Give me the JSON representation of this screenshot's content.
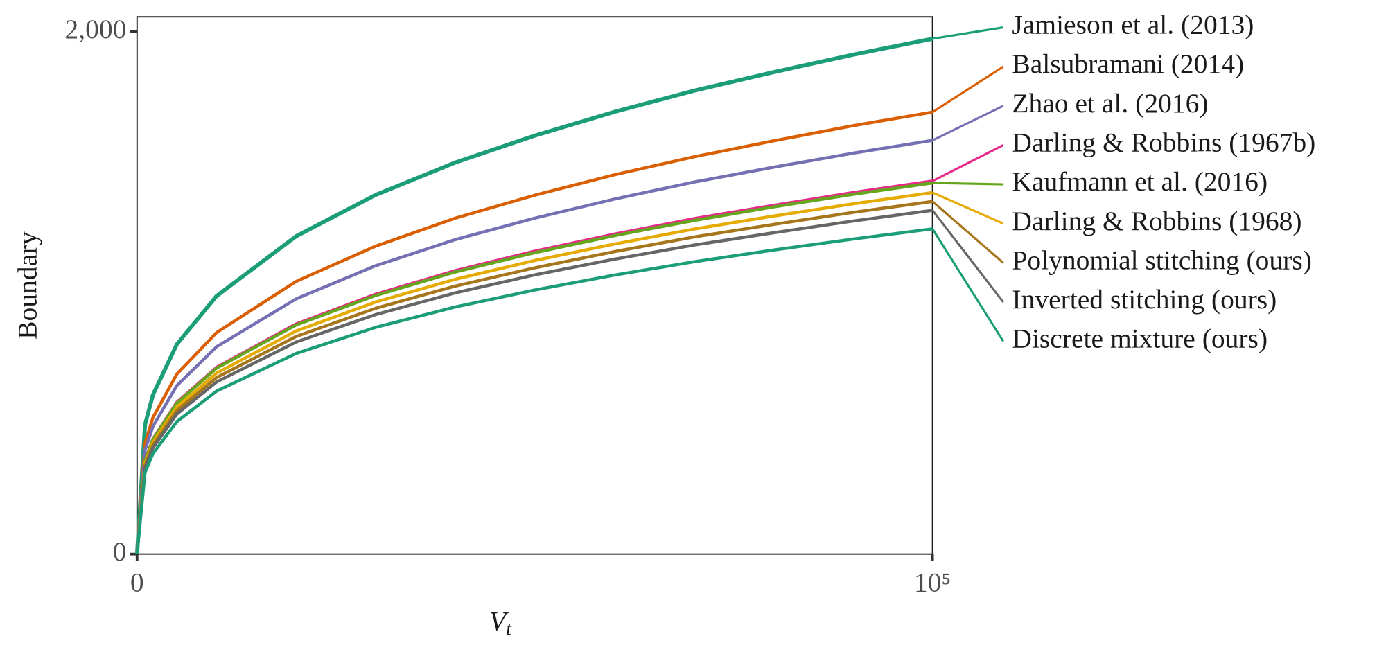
{
  "chart_data": {
    "type": "line",
    "xlabel": [
      "V",
      "t"
    ],
    "ylabel": "Boundary",
    "x": [
      0,
      1000,
      2000,
      5000,
      10000,
      20000,
      30000,
      40000,
      50000,
      60000,
      70000,
      80000,
      90000,
      100000
    ],
    "xlim": [
      0,
      100000
    ],
    "ylim": [
      0,
      2057
    ],
    "xticks": [
      0,
      {
        "value": 100000,
        "label": "10⁵"
      }
    ],
    "yticks": [
      0,
      {
        "value": 2000,
        "label": "2,000"
      }
    ],
    "series": [
      {
        "name": "Jamieson et al. (2013)",
        "color": "#1b9e77",
        "values": [
          0,
          495,
          610,
          803,
          988,
          1217,
          1375,
          1499,
          1602,
          1693,
          1774,
          1845,
          1912,
          1973
        ]
      },
      {
        "name": "Balsubramani (2014)",
        "color": "#d95f02",
        "values": [
          0,
          425,
          523,
          689,
          848,
          1044,
          1179,
          1286,
          1374,
          1452,
          1521,
          1582,
          1640,
          1692
        ]
      },
      {
        "name": "Zhao et al. (2016)",
        "color": "#7570b3",
        "values": [
          0,
          398,
          489,
          645,
          794,
          977,
          1104,
          1204,
          1286,
          1359,
          1424,
          1481,
          1535,
          1584
        ]
      },
      {
        "name": "Darling & Robbins (1967b)",
        "color": "#e7298a",
        "values": [
          0,
          358,
          441,
          581,
          715,
          881,
          995,
          1085,
          1160,
          1225,
          1284,
          1335,
          1384,
          1428
        ]
      },
      {
        "name": "Kaufmann et al. (2016)",
        "color": "#66a61e",
        "values": [
          0,
          357,
          439,
          578,
          712,
          877,
          990,
          1080,
          1154,
          1219,
          1277,
          1329,
          1377,
          1421
        ]
      },
      {
        "name": "Darling & Robbins (1968)",
        "color": "#e6ab02",
        "values": [
          0,
          347,
          428,
          563,
          693,
          854,
          965,
          1052,
          1124,
          1187,
          1244,
          1294,
          1341,
          1384
        ]
      },
      {
        "name": "Polynomial stitching (ours)",
        "color": "#a6761d",
        "values": [
          0,
          339,
          417,
          549,
          676,
          833,
          941,
          1026,
          1096,
          1158,
          1214,
          1262,
          1308,
          1350
        ]
      },
      {
        "name": "Inverted stitching (ours)",
        "color": "#666666",
        "values": [
          0,
          330,
          407,
          536,
          659,
          812,
          917,
          1000,
          1069,
          1129,
          1183,
          1230,
          1275,
          1316
        ]
      },
      {
        "name": "Discrete mixture (ours)",
        "color": "#1b9e77",
        "values": [
          0,
          312,
          385,
          507,
          624,
          768,
          868,
          946,
          1011,
          1068,
          1119,
          1164,
          1206,
          1245
        ]
      }
    ]
  }
}
